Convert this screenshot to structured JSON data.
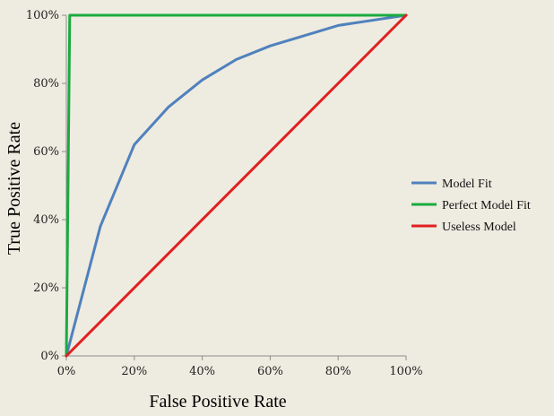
{
  "chart_data": {
    "type": "line",
    "xlabel": "False Positive Rate",
    "ylabel": "True Positive Rate",
    "xlim": [
      0,
      100
    ],
    "ylim": [
      0,
      100
    ],
    "x_ticks": [
      "0%",
      "20%",
      "40%",
      "60%",
      "80%",
      "100%"
    ],
    "y_ticks": [
      "0%",
      "20%",
      "40%",
      "60%",
      "80%",
      "100%"
    ],
    "grid": false,
    "legend_position": "right",
    "series": [
      {
        "name": "Model Fit",
        "color": "#4f81bd",
        "x": [
          0,
          10,
          20,
          30,
          40,
          50,
          60,
          70,
          80,
          90,
          100
        ],
        "y": [
          0,
          38,
          62,
          73,
          81,
          87,
          91,
          94,
          97,
          98.5,
          100
        ]
      },
      {
        "name": "Perfect Model Fit",
        "color": "#1aab40",
        "x": [
          0,
          1,
          100
        ],
        "y": [
          0,
          100,
          100
        ]
      },
      {
        "name": "Useless Model",
        "color": "#e02020",
        "x": [
          0,
          100
        ],
        "y": [
          0,
          100
        ]
      }
    ]
  }
}
